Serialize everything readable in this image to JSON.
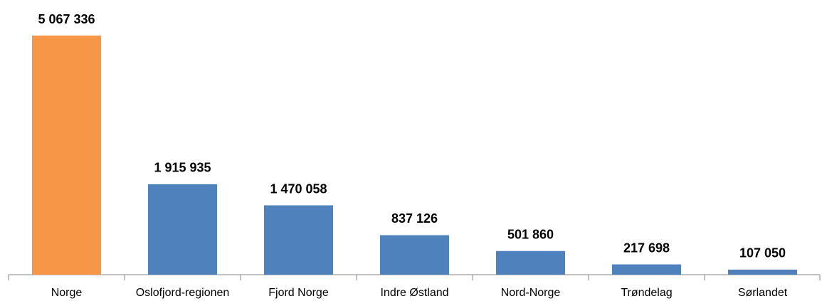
{
  "chart_data": {
    "type": "bar",
    "categories": [
      "Norge",
      "Oslofjord-regionen",
      "Fjord Norge",
      "Indre Østland",
      "Nord-Norge",
      "Trøndelag",
      "Sørlandet"
    ],
    "values": [
      5067336,
      1915935,
      1470058,
      837126,
      501860,
      217698,
      107050
    ],
    "value_labels": [
      "5 067 336",
      "1 915 935",
      "1 470 058",
      "837 126",
      "501 860",
      "217 698",
      "107 050"
    ],
    "colors": [
      "#f79646",
      "#4f81bd",
      "#4f81bd",
      "#4f81bd",
      "#4f81bd",
      "#4f81bd",
      "#4f81bd"
    ]
  }
}
